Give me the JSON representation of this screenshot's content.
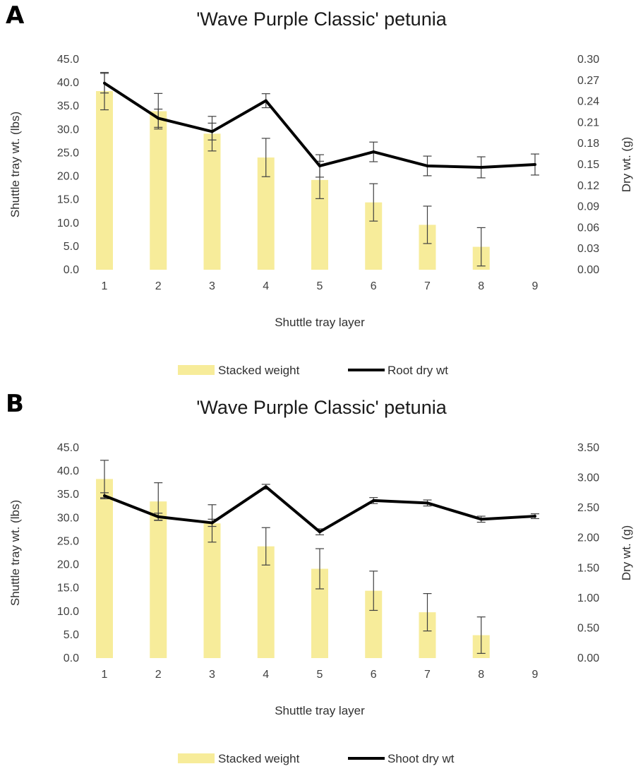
{
  "chart_data": [
    {
      "panel_label": "A",
      "type": "bar+line",
      "title": "'Wave Purple Classic' petunia",
      "xlabel": "Shuttle tray layer",
      "ylabel": "Shuttle tray wt. (lbs)",
      "y2label": "Dry wt. (g)",
      "categories": [
        "1",
        "2",
        "3",
        "4",
        "5",
        "6",
        "7",
        "8",
        "9"
      ],
      "ylim": [
        0,
        45
      ],
      "yticks": [
        "0.0",
        "5.0",
        "10.0",
        "15.0",
        "20.0",
        "25.0",
        "30.0",
        "35.0",
        "40.0",
        "45.0"
      ],
      "y2lim": [
        0,
        0.3
      ],
      "y2ticks": [
        "0.00",
        "0.03",
        "0.06",
        "0.09",
        "0.12",
        "0.15",
        "0.18",
        "0.21",
        "0.24",
        "0.27",
        "0.30"
      ],
      "legend_position": "bottom",
      "bar_color": "#f7ec9a",
      "line_color": "#000000",
      "series": [
        {
          "name": "Stacked weight",
          "kind": "bar",
          "axis": "left",
          "values": [
            38.2,
            33.9,
            29.1,
            24.0,
            19.2,
            14.4,
            9.6,
            4.9,
            null
          ],
          "errors": [
            4.0,
            3.8,
            3.7,
            4.1,
            4.0,
            4.0,
            4.0,
            4.1,
            null
          ]
        },
        {
          "name": "Root dry wt",
          "kind": "line",
          "axis": "right",
          "values": [
            0.266,
            0.216,
            0.197,
            0.241,
            0.148,
            0.168,
            0.148,
            0.146,
            0.15
          ],
          "errors": [
            0.014,
            0.013,
            0.012,
            0.01,
            0.016,
            0.014,
            0.014,
            0.015,
            0.015
          ]
        }
      ]
    },
    {
      "panel_label": "B",
      "type": "bar+line",
      "title": "'Wave Purple Classic' petunia",
      "xlabel": "Shuttle tray layer",
      "ylabel": "Shuttle tray wt. (lbs)",
      "y2label": "Dry wt. (g)",
      "categories": [
        "1",
        "2",
        "3",
        "4",
        "5",
        "6",
        "7",
        "8",
        "9"
      ],
      "ylim": [
        0,
        45
      ],
      "yticks": [
        "0.0",
        "5.0",
        "10.0",
        "15.0",
        "20.0",
        "25.0",
        "30.0",
        "35.0",
        "40.0",
        "45.0"
      ],
      "y2lim": [
        0,
        3.5
      ],
      "y2ticks": [
        "0.00",
        "0.50",
        "1.00",
        "1.50",
        "2.00",
        "2.50",
        "3.00",
        "3.50"
      ],
      "legend_position": "bottom",
      "bar_color": "#f7ec9a",
      "line_color": "#000000",
      "series": [
        {
          "name": "Stacked weight",
          "kind": "bar",
          "axis": "left",
          "values": [
            38.3,
            33.5,
            28.8,
            23.9,
            19.1,
            14.4,
            9.8,
            4.9,
            null
          ],
          "errors": [
            4.0,
            4.0,
            4.0,
            4.0,
            4.3,
            4.2,
            4.0,
            3.9,
            null
          ]
        },
        {
          "name": "Shoot dry wt",
          "kind": "line",
          "axis": "right",
          "values": [
            2.7,
            2.35,
            2.25,
            2.85,
            2.1,
            2.62,
            2.58,
            2.31,
            2.36
          ],
          "errors": [
            0.05,
            0.06,
            0.06,
            0.04,
            0.05,
            0.05,
            0.05,
            0.05,
            0.04
          ]
        }
      ]
    }
  ]
}
